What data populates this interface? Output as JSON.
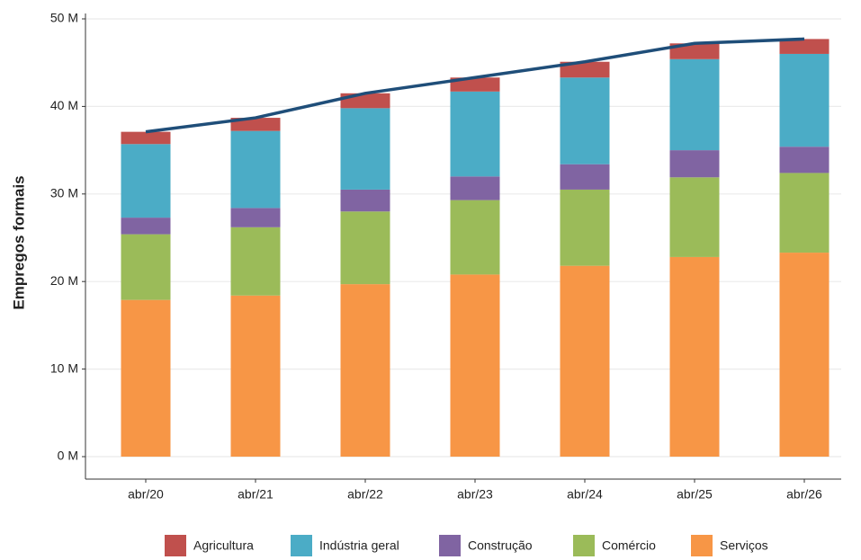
{
  "chart_data": {
    "type": "stacked_bar",
    "y_label": "Empregos formais",
    "categories": [
      "abr/20",
      "abr/21",
      "abr/22",
      "abr/23",
      "abr/24",
      "abr/25",
      "abr/26"
    ],
    "series": [
      {
        "name": "Agricultura",
        "color": "#c0504d",
        "values": [
          1.4,
          1.5,
          1.7,
          1.6,
          1.8,
          1.8,
          1.7
        ]
      },
      {
        "name": "Indústria geral",
        "color": "#4bacc6",
        "values": [
          8.4,
          8.8,
          9.3,
          9.7,
          9.9,
          10.4,
          10.6
        ]
      },
      {
        "name": "Construção",
        "color": "#8064a2",
        "values": [
          1.9,
          2.2,
          2.5,
          2.7,
          2.9,
          3.1,
          3.0
        ]
      },
      {
        "name": "Comércio",
        "color": "#9bbb59",
        "values": [
          7.5,
          7.8,
          8.3,
          8.5,
          8.7,
          9.1,
          9.1
        ]
      },
      {
        "name": "Serviços",
        "color": "#f79646",
        "values": [
          17.9,
          18.4,
          19.7,
          20.8,
          21.8,
          22.8,
          23.3
        ]
      }
    ],
    "line": {
      "color": "#1f4e79",
      "values": [
        37.1,
        38.7,
        41.5,
        43.3,
        45.1,
        47.2,
        47.7
      ]
    },
    "ylim": [
      0,
      50
    ],
    "yticks": [
      {
        "value": 0,
        "label": "0 M"
      },
      {
        "value": 10,
        "label": "10 M"
      },
      {
        "value": 20,
        "label": "20 M"
      },
      {
        "value": 30,
        "label": "30 M"
      },
      {
        "value": 40,
        "label": "40 M"
      },
      {
        "value": 50,
        "label": "50 M"
      }
    ],
    "grid": true,
    "legend": "bottom"
  }
}
